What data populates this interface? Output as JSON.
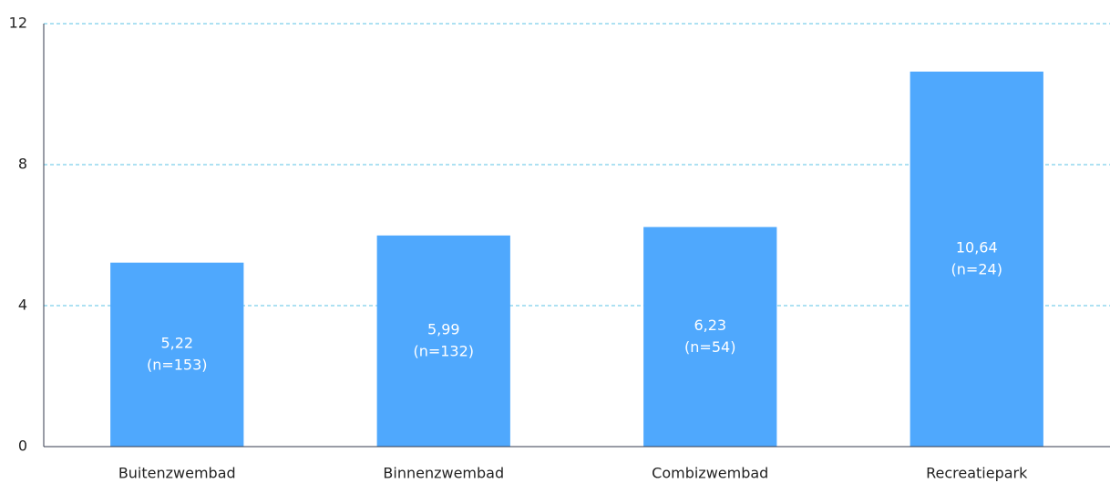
{
  "chart_data": {
    "type": "bar",
    "categories": [
      "Buitenzwembad",
      "Binnenzwembad",
      "Combizwembad",
      "Recreatiepark"
    ],
    "values": [
      5.22,
      5.99,
      6.23,
      10.64
    ],
    "value_labels": [
      "5,22",
      "5,99",
      "6,23",
      "10,64"
    ],
    "sample_labels": [
      "(n=153)",
      "(n=132)",
      "(n=54)",
      "(n=24)"
    ],
    "color": "#4fa8fd",
    "ylim": [
      0,
      12
    ],
    "yticks": [
      0,
      4,
      8,
      12
    ],
    "grid": true,
    "grid_color": "#5bc3e6"
  }
}
